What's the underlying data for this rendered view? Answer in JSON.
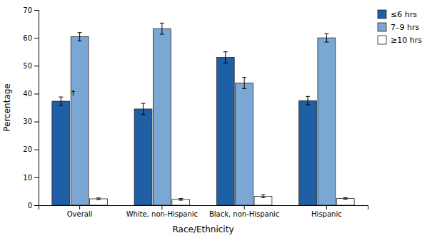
{
  "chart_data": {
    "type": "bar",
    "categories": [
      "Overall",
      "White, non-Hispanic",
      "Black, non-Hispanic",
      "Hispanic"
    ],
    "series": [
      {
        "name": "≤6 hrs",
        "color": "#1f5fa6",
        "values": [
          37.3,
          34.5,
          53.0,
          37.5
        ],
        "errors": [
          1.5,
          2.0,
          2.0,
          1.5
        ]
      },
      {
        "name": "7–9 hrs",
        "color": "#7ba7d4",
        "values": [
          60.4,
          63.3,
          43.8,
          60.0
        ],
        "errors": [
          1.5,
          2.0,
          2.0,
          1.5
        ]
      },
      {
        "name": "≥10 hrs",
        "color": "#ffffff",
        "values": [
          2.3,
          2.1,
          3.2,
          2.4
        ],
        "errors": [
          0.3,
          0.3,
          0.5,
          0.3
        ]
      }
    ],
    "xlabel": "Race/Ethnicity",
    "ylabel": "Percentage",
    "ylim": [
      0,
      70
    ],
    "yticks": [
      0,
      10,
      20,
      30,
      40,
      50,
      60,
      70
    ],
    "grid": false,
    "legend": "upper right",
    "annotations": [
      {
        "text": "†",
        "category": "Overall",
        "series": "≤6 hrs"
      }
    ]
  }
}
